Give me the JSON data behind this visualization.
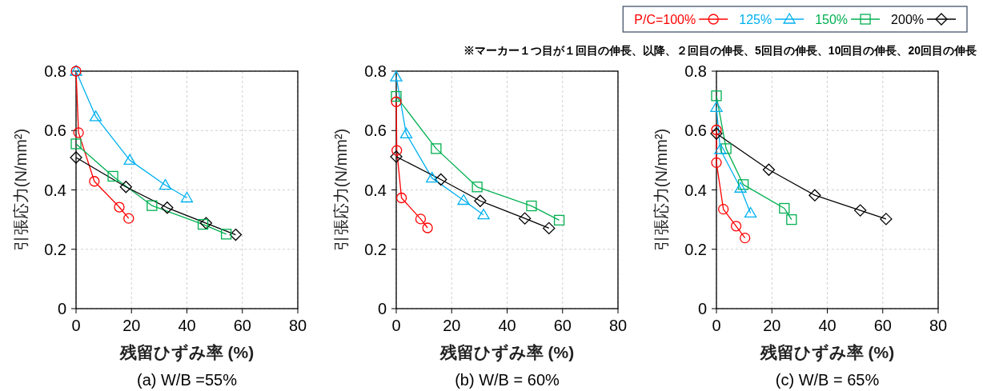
{
  "chart_data": [
    {
      "type": "line",
      "title": "(a) W/B =55%",
      "xlabel": "残留ひずみ率 (%)",
      "ylabel": "引張応力(N/mm²)",
      "xlim": [
        0,
        80
      ],
      "xticks": [
        0,
        20,
        40,
        60,
        80
      ],
      "ylim": [
        0,
        0.8
      ],
      "yticks": [
        0,
        0.2,
        0.4,
        0.6,
        0.8
      ],
      "grid": true,
      "series": [
        {
          "color": "#ff0000",
          "marker": "circle",
          "x": [
            0,
            0.9,
            6.6,
            15.6,
            19.0
          ],
          "values": [
            0.8,
            0.593,
            0.429,
            0.342,
            0.304
          ]
        },
        {
          "color": "#00b0f0",
          "marker": "triangle",
          "x": [
            0,
            7.1,
            19.4,
            32.2,
            40.0
          ],
          "values": [
            0.8,
            0.647,
            0.5,
            0.416,
            0.373
          ]
        },
        {
          "color": "#00b050",
          "marker": "square",
          "x": [
            0,
            13.3,
            27.4,
            45.8,
            54.2
          ],
          "values": [
            0.555,
            0.446,
            0.347,
            0.284,
            0.251
          ]
        },
        {
          "color": "#000000",
          "marker": "diamond",
          "x": [
            0,
            18.0,
            32.9,
            46.9,
            57.6
          ],
          "values": [
            0.509,
            0.41,
            0.34,
            0.288,
            0.249
          ]
        }
      ]
    },
    {
      "type": "line",
      "title": "(b) W/B = 60%",
      "xlabel": "残留ひずみ率 (%)",
      "ylabel": "引張応力(N/mm²)",
      "xlim": [
        0,
        80
      ],
      "xticks": [
        0,
        20,
        40,
        60,
        80
      ],
      "ylim": [
        0,
        0.8
      ],
      "yticks": [
        0,
        0.2,
        0.4,
        0.6,
        0.8
      ],
      "grid": true,
      "series": [
        {
          "color": "#ff0000",
          "marker": "circle",
          "x": [
            0,
            0.2,
            1.9,
            8.8,
            11.3
          ],
          "values": [
            0.697,
            0.533,
            0.373,
            0.302,
            0.272
          ]
        },
        {
          "color": "#00b0f0",
          "marker": "triangle",
          "x": [
            0,
            3.6,
            12.9,
            24.3,
            31.5
          ],
          "values": [
            0.781,
            0.589,
            0.44,
            0.365,
            0.316
          ]
        },
        {
          "color": "#00b050",
          "marker": "square",
          "x": [
            0,
            14.4,
            29.2,
            48.8,
            58.8
          ],
          "values": [
            0.715,
            0.539,
            0.41,
            0.346,
            0.298
          ]
        },
        {
          "color": "#000000",
          "marker": "diamond",
          "x": [
            0,
            16.1,
            30.3,
            46.4,
            55.1
          ],
          "values": [
            0.512,
            0.435,
            0.363,
            0.304,
            0.271
          ]
        }
      ]
    },
    {
      "type": "line",
      "title": "(c) W/B = 65%",
      "xlabel": "残留ひずみ率 (%)",
      "ylabel": "引張応力(N/mm²)",
      "xlim": [
        0,
        80
      ],
      "xticks": [
        0,
        20,
        40,
        60,
        80
      ],
      "ylim": [
        0,
        0.8
      ],
      "yticks": [
        0,
        0.2,
        0.4,
        0.6,
        0.8
      ],
      "grid": true,
      "legend": "top left",
      "annotations": [
        "※マーカー１つ目が１回目の伸長、以降、２回目の伸長、5回目の伸長、10回目の伸長、20回目の伸長"
      ],
      "series": [
        {
          "name": "P/C=100%",
          "color": "#ff0000",
          "marker": "circle",
          "x": [
            0,
            0,
            2.5,
            7.1,
            10.3
          ],
          "values": [
            0.602,
            0.492,
            0.335,
            0.278,
            0.238
          ]
        },
        {
          "name": "125%",
          "color": "#00b0f0",
          "marker": "triangle",
          "x": [
            0,
            1.4,
            8.7,
            12.3
          ],
          "values": [
            0.678,
            0.536,
            0.406,
            0.322
          ]
        },
        {
          "name": "150%",
          "color": "#00b050",
          "marker": "square",
          "x": [
            0,
            3.5,
            9.7,
            24.5,
            27.1
          ],
          "values": [
            0.717,
            0.539,
            0.418,
            0.338,
            0.3
          ]
        },
        {
          "name": "200%",
          "color": "#000000",
          "marker": "diamond",
          "x": [
            0,
            18.9,
            35.5,
            51.9,
            61.2
          ],
          "values": [
            0.59,
            0.468,
            0.382,
            0.331,
            0.302
          ]
        }
      ]
    }
  ]
}
